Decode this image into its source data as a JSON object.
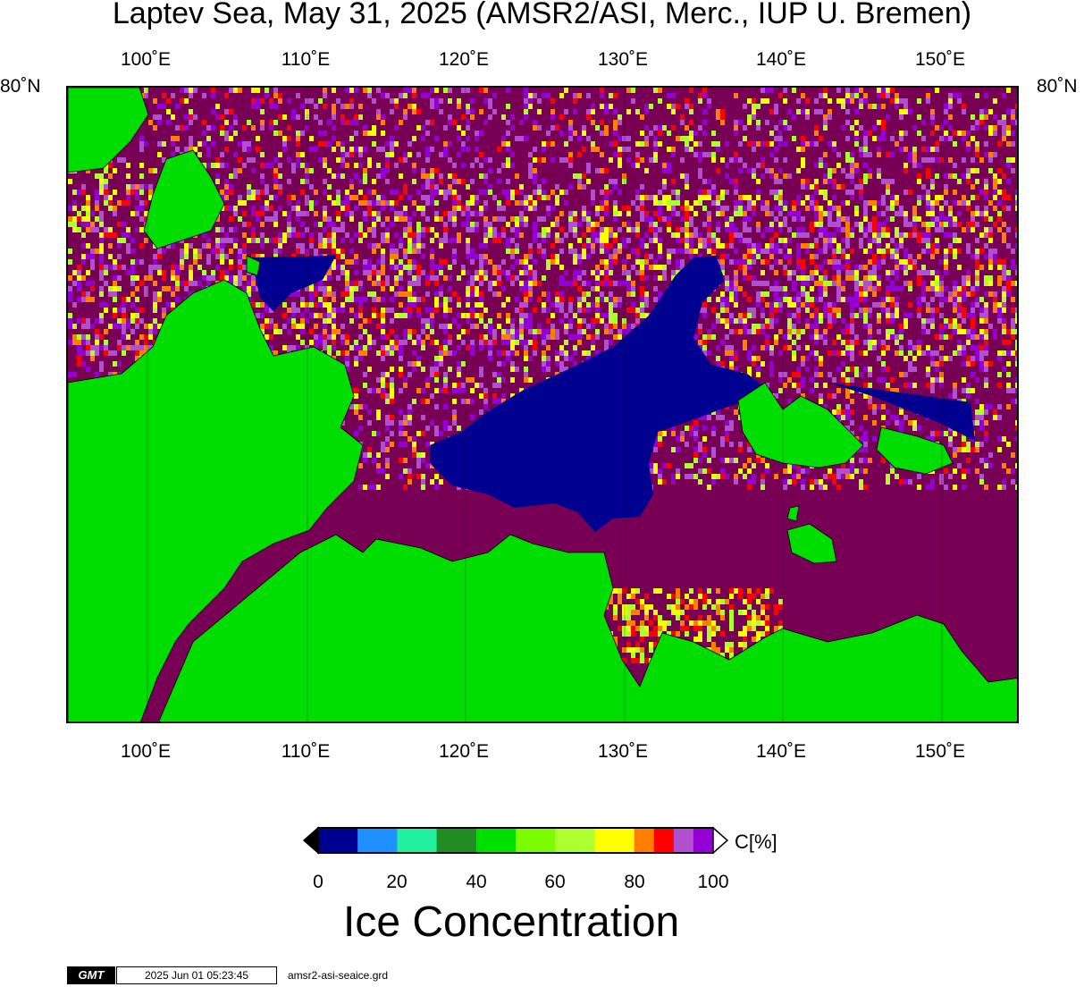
{
  "title": "Laptev Sea, May 31, 2025 (AMSR2/ASI, Merc., IUP U. Bremen)",
  "map": {
    "lon_ticks": [
      "100˚E",
      "110˚E",
      "120˚E",
      "130˚E",
      "140˚E",
      "150˚E"
    ],
    "lat_label_left": "80˚N",
    "lat_label_right": "80˚N"
  },
  "colorbar": {
    "ticks": [
      "0",
      "20",
      "40",
      "60",
      "80",
      "100"
    ],
    "unit": "C[%]",
    "title": "Ice Concentration",
    "colors": [
      "#000090",
      "#1e90ff",
      "#20f0a0",
      "#228b22",
      "#00e000",
      "#7cfc00",
      "#adff2f",
      "#ffff00",
      "#ff8000",
      "#ff0000",
      "#b050d0",
      "#9400d3"
    ],
    "land_color": "#00dd00",
    "ice_color": "#770055"
  },
  "footer": {
    "logo": "GMT",
    "timestamp": "2025 Jun 01 05:23:45",
    "filename": "amsr2-asi-seaice.grd"
  }
}
